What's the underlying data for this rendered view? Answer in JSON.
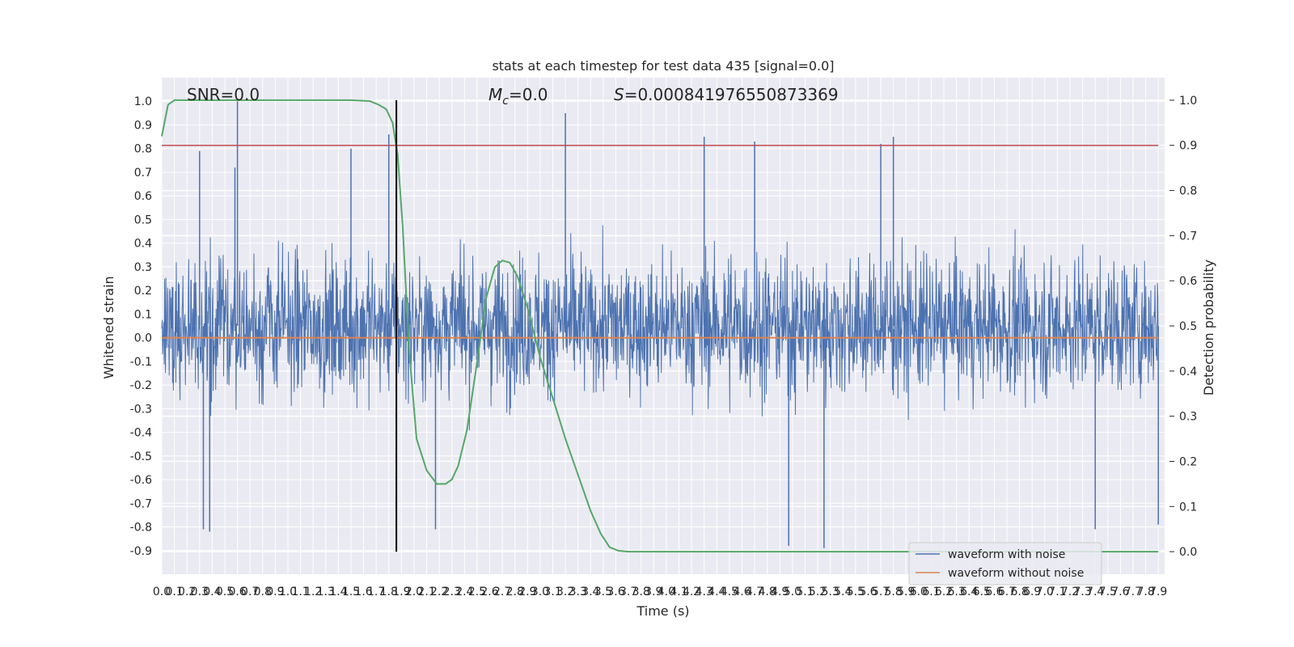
{
  "chart_data": {
    "type": "line",
    "title": "stats at each timestep for test data 435 [signal=0.0]",
    "xlabel": "Time (s)",
    "ylabel": "Whitened strain",
    "y2label": "Detection probability",
    "xlim": [
      0.0,
      7.95
    ],
    "ylim": [
      -1.0,
      1.1
    ],
    "y2lim": [
      -0.05,
      1.05
    ],
    "x_ticks": [
      "0.0",
      "0.1",
      "0.2",
      "0.3",
      "0.4",
      "0.5",
      "0.6",
      "0.7",
      "0.8",
      "0.9",
      "1.0",
      "1.1",
      "1.2",
      "1.3",
      "1.4",
      "1.5",
      "1.6",
      "1.7",
      "1.8",
      "1.9",
      "2.0",
      "2.1",
      "2.2",
      "2.3",
      "2.4",
      "2.5",
      "2.6",
      "2.7",
      "2.8",
      "2.9",
      "3.0",
      "3.1",
      "3.2",
      "3.3",
      "3.4",
      "3.5",
      "3.6",
      "3.7",
      "3.8",
      "3.9",
      "4.0",
      "4.1",
      "4.2",
      "4.3",
      "4.4",
      "4.5",
      "4.6",
      "4.7",
      "4.8",
      "4.9",
      "5.0",
      "5.1",
      "5.2",
      "5.3",
      "5.4",
      "5.5",
      "5.6",
      "5.7",
      "5.8",
      "5.9",
      "6.0",
      "6.1",
      "6.2",
      "6.3",
      "6.4",
      "6.5",
      "6.6",
      "6.7",
      "6.8",
      "6.9",
      "7.0",
      "7.1",
      "7.2",
      "7.3",
      "7.4",
      "7.5",
      "7.6",
      "7.7",
      "7.8",
      "7.9"
    ],
    "y_ticks": [
      "1.0",
      "0.9",
      "0.8",
      "0.7",
      "0.6",
      "0.5",
      "0.4",
      "0.3",
      "0.2",
      "0.1",
      "0.0",
      "-0.1",
      "-0.2",
      "-0.3",
      "-0.4",
      "-0.5",
      "-0.6",
      "-0.7",
      "-0.8",
      "-0.9"
    ],
    "y2_ticks": [
      "1.0",
      "0.9",
      "0.8",
      "0.7",
      "0.6",
      "0.5",
      "0.4",
      "0.3",
      "0.2",
      "0.1",
      "0.0"
    ],
    "annotations": {
      "snr": "SNR=0.0",
      "mc_symbol": "M",
      "mc_sub": "c",
      "mc_value": "=0.0",
      "s_symbol": "S",
      "s_value": "=0.000841976550873369"
    },
    "threshold": 0.9,
    "marker_time": 1.86,
    "series": [
      {
        "name": "waveform with noise",
        "color": "#4c72b0",
        "noise": true,
        "peaks": [
          {
            "x": 0.6,
            "y": 1.0
          },
          {
            "x": 1.8,
            "y": 0.86
          },
          {
            "x": 3.2,
            "y": 0.95
          },
          {
            "x": 1.5,
            "y": 0.8
          },
          {
            "x": 0.3,
            "y": 0.79
          },
          {
            "x": 4.3,
            "y": 0.85
          },
          {
            "x": 5.8,
            "y": 0.85
          },
          {
            "x": 5.7,
            "y": 0.82
          },
          {
            "x": 4.7,
            "y": 0.83
          },
          {
            "x": 0.58,
            "y": 0.72
          }
        ],
        "troughs": [
          {
            "x": 0.33,
            "y": -0.81
          },
          {
            "x": 0.38,
            "y": -0.82
          },
          {
            "x": 2.17,
            "y": -0.81
          },
          {
            "x": 4.97,
            "y": -0.88
          },
          {
            "x": 5.25,
            "y": -0.89
          },
          {
            "x": 7.4,
            "y": -0.81
          },
          {
            "x": 7.9,
            "y": -0.79
          }
        ]
      },
      {
        "name": "waveform without noise",
        "color": "#dd8452",
        "y": 0.0
      },
      {
        "name": "",
        "color": "#55a868",
        "axis": "y2",
        "x": [
          0.0,
          0.05,
          0.1,
          0.2,
          0.4,
          0.8,
          1.2,
          1.5,
          1.65,
          1.72,
          1.78,
          1.83,
          1.87,
          1.91,
          1.96,
          2.02,
          2.1,
          2.18,
          2.25,
          2.3,
          2.35,
          2.42,
          2.5,
          2.57,
          2.64,
          2.7,
          2.76,
          2.82,
          2.9,
          3.0,
          3.1,
          3.2,
          3.3,
          3.4,
          3.48,
          3.55,
          3.62,
          3.7,
          4.0,
          5.0,
          6.0,
          7.0,
          7.9
        ],
        "y": [
          0.92,
          0.99,
          1.0,
          1.0,
          1.0,
          1.0,
          1.0,
          1.0,
          0.998,
          0.99,
          0.98,
          0.95,
          0.88,
          0.72,
          0.45,
          0.25,
          0.18,
          0.15,
          0.15,
          0.16,
          0.19,
          0.27,
          0.42,
          0.56,
          0.63,
          0.645,
          0.64,
          0.61,
          0.54,
          0.43,
          0.34,
          0.25,
          0.17,
          0.09,
          0.04,
          0.01,
          0.002,
          0.0,
          0.0,
          0.0,
          0.0,
          0.0,
          0.0
        ]
      },
      {
        "name": "",
        "color": "#c44e52",
        "axis": "y2",
        "y": 0.9
      }
    ],
    "legend": {
      "placement": "lower-right",
      "entries": [
        "waveform with noise",
        "waveform without noise"
      ]
    },
    "grid": true
  }
}
